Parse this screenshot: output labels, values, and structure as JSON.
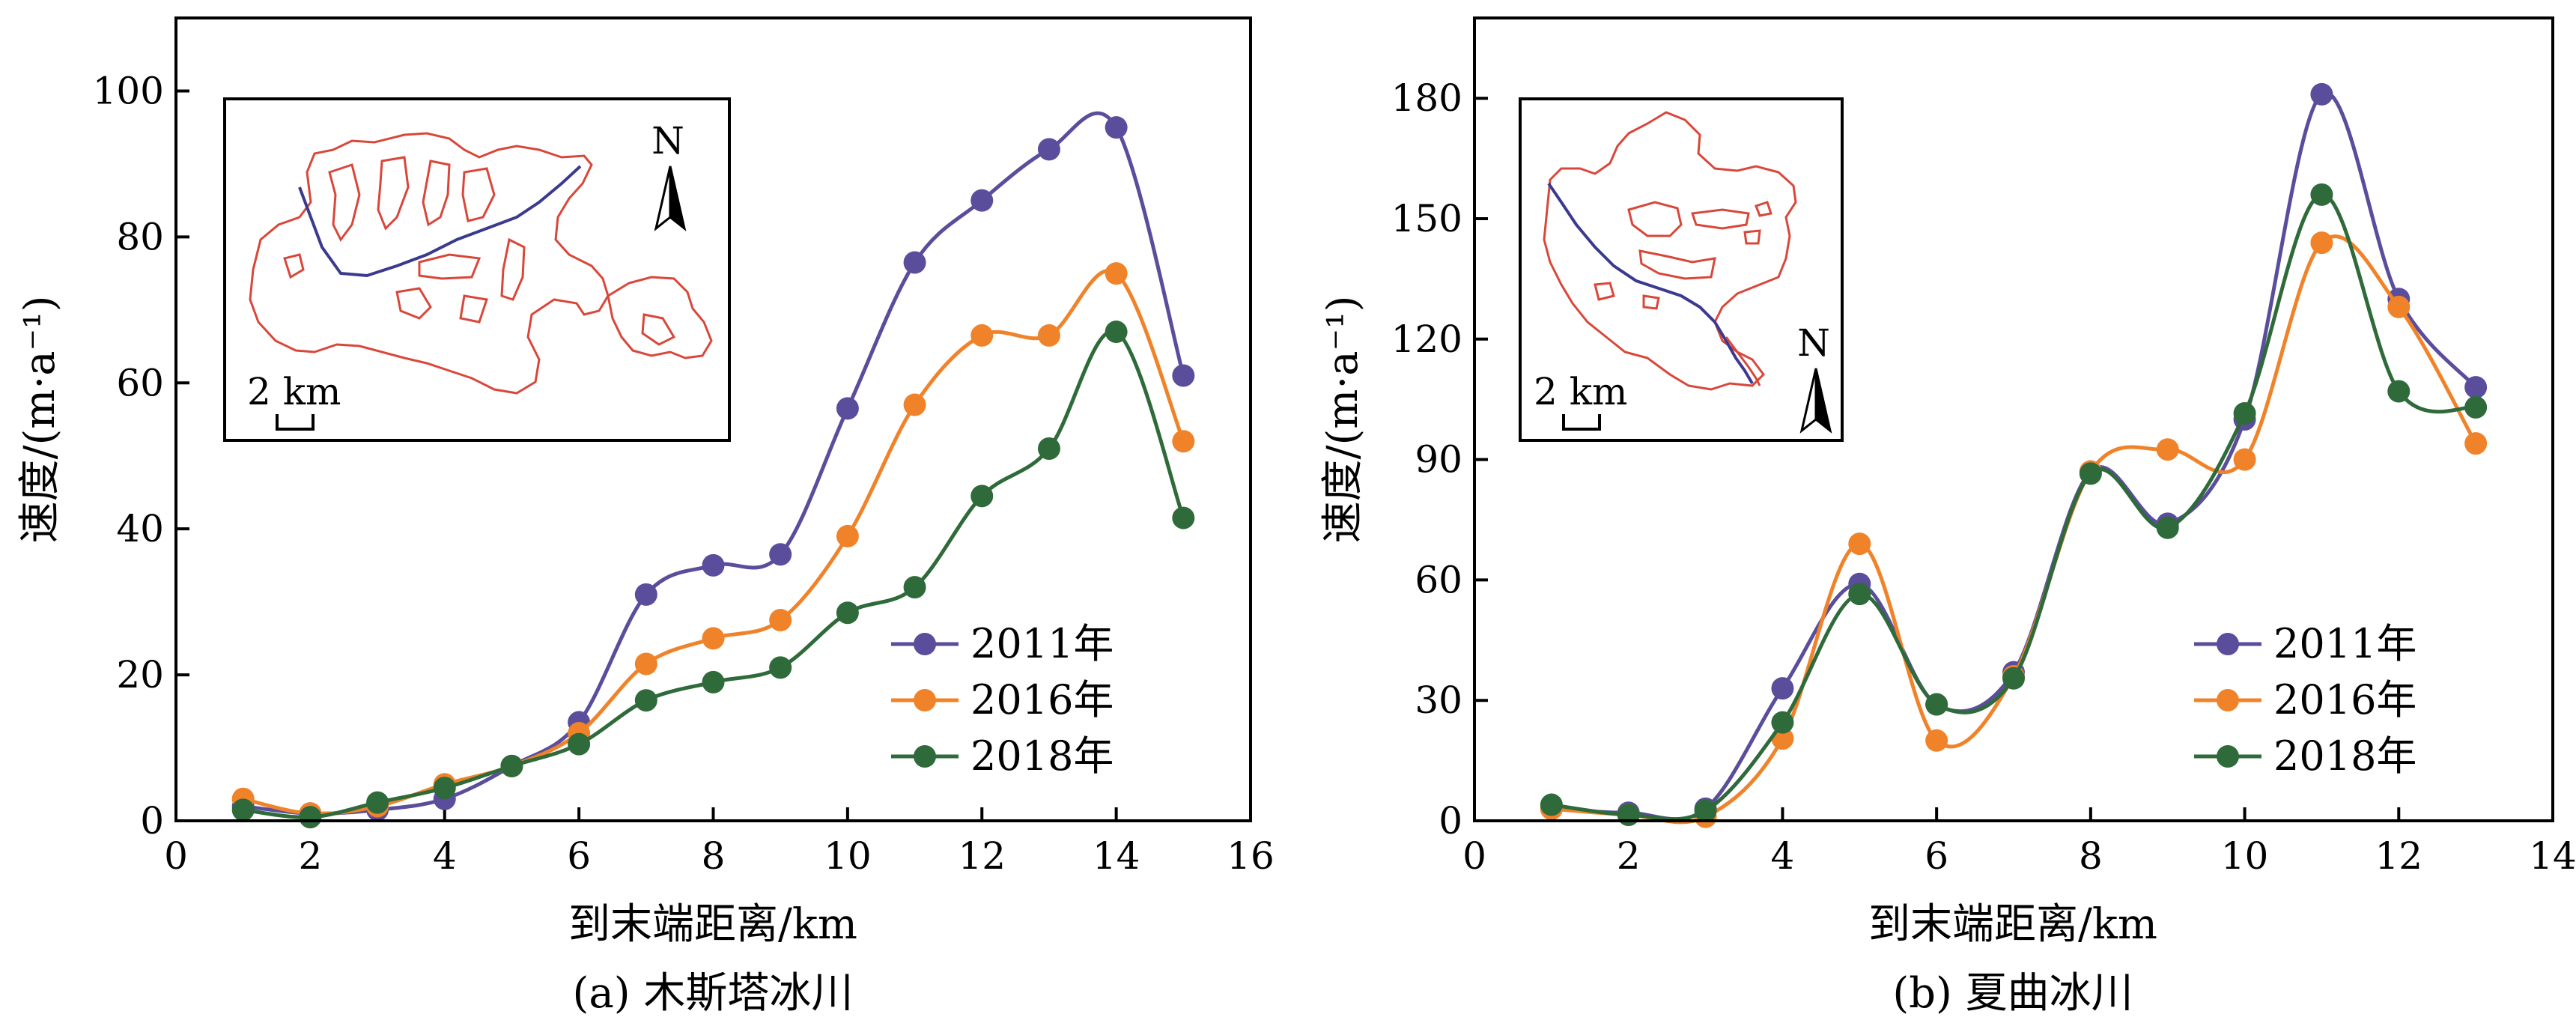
{
  "colors": {
    "2011": "#5a4e9c",
    "2016": "#f0832a",
    "2018": "#2f6a3a",
    "outline": "#d9473a",
    "flowline": "#3b3a8f"
  },
  "chart_data": [
    {
      "type": "line",
      "caption": "(a) 木斯塔冰川",
      "xlabel": "到末端距离/km",
      "ylabel": "速度/(m·a⁻¹)",
      "xlim": [
        0,
        16
      ],
      "ylim": [
        0,
        110
      ],
      "xticks": [
        0,
        2,
        4,
        6,
        8,
        10,
        12,
        14,
        16
      ],
      "yticks": [
        0,
        20,
        40,
        60,
        80,
        100
      ],
      "legend_position": "lower-right",
      "grid": false,
      "series": [
        {
          "name": "2011年",
          "color_key": "2011",
          "x": [
            1,
            2,
            3,
            4,
            5,
            6,
            7,
            8,
            9,
            10,
            11,
            12,
            13,
            14,
            15
          ],
          "y": [
            2,
            1,
            1.5,
            3,
            7.5,
            13.5,
            31,
            35,
            36.5,
            56.5,
            76.5,
            85,
            92,
            95,
            61
          ]
        },
        {
          "name": "2016年",
          "color_key": "2016",
          "x": [
            1,
            2,
            3,
            4,
            5,
            6,
            7,
            8,
            9,
            10,
            11,
            12,
            13,
            14,
            15
          ],
          "y": [
            3,
            1,
            2,
            5,
            7.5,
            12,
            21.5,
            25,
            27.5,
            39,
            57,
            66.5,
            66.5,
            75,
            52
          ]
        },
        {
          "name": "2018年",
          "color_key": "2018",
          "x": [
            1,
            2,
            3,
            4,
            5,
            6,
            7,
            8,
            9,
            10,
            11,
            12,
            13,
            14,
            15
          ],
          "y": [
            1.5,
            0.5,
            2.5,
            4.5,
            7.5,
            10.5,
            16.5,
            19,
            21,
            28.5,
            32,
            44.5,
            51,
            67,
            41.5
          ]
        }
      ],
      "inset": {
        "scale_label": "2 km",
        "north_label": "N"
      }
    },
    {
      "type": "line",
      "caption": "(b) 夏曲冰川",
      "xlabel": "到末端距离/km",
      "ylabel": "速度/(m·a⁻¹)",
      "xlim": [
        0,
        14
      ],
      "ylim": [
        0,
        200
      ],
      "xticks": [
        0,
        2,
        4,
        6,
        8,
        10,
        12,
        14
      ],
      "yticks": [
        0,
        30,
        60,
        90,
        120,
        150,
        180
      ],
      "legend_position": "lower-right",
      "grid": false,
      "series": [
        {
          "name": "2011年",
          "color_key": "2011",
          "x": [
            1,
            2,
            3,
            4,
            5,
            6,
            7,
            8,
            9,
            10,
            11,
            12,
            13
          ],
          "y": [
            3,
            2,
            3,
            33,
            59,
            29,
            37,
            87,
            74,
            100,
            181,
            130,
            108
          ]
        },
        {
          "name": "2016年",
          "color_key": "2016",
          "x": [
            1,
            2,
            3,
            4,
            5,
            6,
            7,
            8,
            9,
            10,
            11,
            12,
            13
          ],
          "y": [
            3,
            1.5,
            1,
            20.5,
            69,
            20,
            36,
            87,
            92.5,
            90,
            144,
            128,
            94
          ]
        },
        {
          "name": "2018年",
          "color_key": "2018",
          "x": [
            1,
            2,
            3,
            4,
            5,
            6,
            7,
            8,
            9,
            10,
            11,
            12,
            13
          ],
          "y": [
            4,
            1.5,
            2.5,
            24.5,
            56.5,
            29,
            35.5,
            86.5,
            73,
            101.5,
            156,
            107,
            103
          ]
        }
      ],
      "inset": {
        "scale_label": "2 km",
        "north_label": "N"
      }
    }
  ]
}
